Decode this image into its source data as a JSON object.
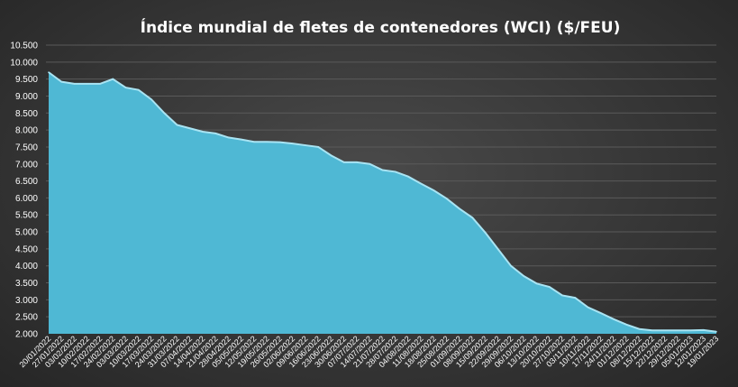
{
  "chart_data": {
    "type": "area",
    "title": "Índice mundial  de fletes de contenedores (WCI) ($/FEU)",
    "xlabel": "",
    "ylabel": "",
    "ylim": [
      2000,
      10500
    ],
    "yticks": [
      2000,
      2500,
      3000,
      3500,
      4000,
      4500,
      5000,
      5500,
      6000,
      6500,
      7000,
      7500,
      8000,
      8500,
      9000,
      9500,
      10000,
      10500
    ],
    "ytick_labels": [
      "2.000",
      "2.500",
      "3.000",
      "3.500",
      "4.000",
      "4.500",
      "5.000",
      "5.500",
      "6.000",
      "6.500",
      "7.000",
      "7.500",
      "8.000",
      "8.500",
      "9.000",
      "9.500",
      "10.000",
      "10.500"
    ],
    "grid": true,
    "legend": "none",
    "fill_color": "#4fb8d4",
    "line_color": "#a9e4f3",
    "categories": [
      "20/01/2022",
      "27/01/2022",
      "03/02/2022",
      "10/02/2022",
      "17/02/2022",
      "24/02/2022",
      "03/03/2022",
      "10/03/2022",
      "17/03/2022",
      "24/03/2022",
      "31/03/2022",
      "07/04/2022",
      "14/04/2022",
      "21/04/2022",
      "28/04/2022",
      "05/05/2022",
      "12/05/2022",
      "19/05/2022",
      "26/05/2022",
      "02/06/2022",
      "09/06/2022",
      "16/06/2022",
      "23/06/2022",
      "30/06/2022",
      "07/07/2022",
      "14/07/2022",
      "21/07/2022",
      "28/07/2022",
      "04/08/2022",
      "11/08/2022",
      "18/08/2022",
      "25/08/2022",
      "01/09/2022",
      "08/09/2022",
      "15/09/2022",
      "22/09/2022",
      "29/09/2022",
      "06/10/2022",
      "13/10/2022",
      "20/10/2022",
      "27/10/2022",
      "03/11/2022",
      "10/11/2022",
      "17/11/2022",
      "24/11/2022",
      "01/12/2022",
      "08/12/2022",
      "15/12/2022",
      "22/12/2022",
      "29/12/2022",
      "05/01/2023",
      "12/01/2023",
      "19/01/2023"
    ],
    "series": [
      {
        "values": [
          9700,
          9420,
          9360,
          9360,
          9360,
          9500,
          9250,
          9180,
          8900,
          8500,
          8150,
          8050,
          7950,
          7900,
          7780,
          7720,
          7650,
          7650,
          7640,
          7600,
          7550,
          7500,
          7250,
          7050,
          7050,
          7000,
          6820,
          6770,
          6630,
          6420,
          6220,
          5980,
          5680,
          5420,
          4980,
          4490,
          4000,
          3700,
          3480,
          3380,
          3130,
          3060,
          2780,
          2610,
          2430,
          2270,
          2140,
          2100,
          2100,
          2100,
          2100,
          2110,
          2060
        ]
      }
    ]
  }
}
